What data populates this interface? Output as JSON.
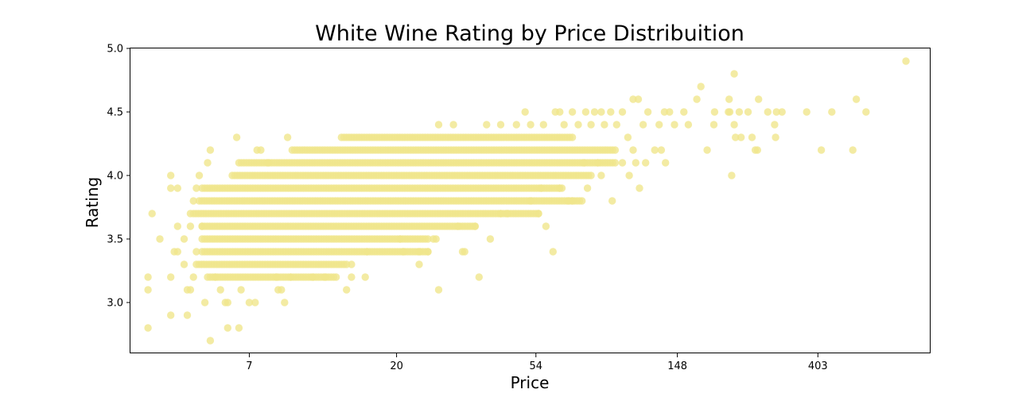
{
  "chart_data": {
    "type": "scatter",
    "title": "White Wine Rating by Price Distribuition",
    "xlabel": "Price",
    "ylabel": "Rating",
    "x_scale": "log",
    "xlim": [
      3,
      900
    ],
    "ylim": [
      2.6,
      5.0
    ],
    "x_ticks": [
      7,
      20,
      54,
      148,
      403
    ],
    "x_tick_labels": [
      "7",
      "20",
      "54",
      "148",
      "403"
    ],
    "y_ticks": [
      3.0,
      3.5,
      4.0,
      4.5,
      5.0
    ],
    "y_tick_labels": [
      "3.0",
      "3.5",
      "4.0",
      "4.5",
      "5.0"
    ],
    "grid": false,
    "legend": "none",
    "marker_color": "#f0e68c",
    "band_series": [
      {
        "rating": 4.3,
        "price_min": 13.5,
        "price_max": 70
      },
      {
        "rating": 4.2,
        "price_min": 9.5,
        "price_max": 95
      },
      {
        "rating": 4.1,
        "price_min": 6.5,
        "price_max": 95
      },
      {
        "rating": 4.0,
        "price_min": 6.2,
        "price_max": 80
      },
      {
        "rating": 3.9,
        "price_min": 5.0,
        "price_max": 65
      },
      {
        "rating": 3.8,
        "price_min": 4.9,
        "price_max": 75
      },
      {
        "rating": 3.7,
        "price_min": 4.7,
        "price_max": 55
      },
      {
        "rating": 3.6,
        "price_min": 5.0,
        "price_max": 35
      },
      {
        "rating": 3.5,
        "price_min": 5.0,
        "price_max": 25
      },
      {
        "rating": 3.4,
        "price_min": 5.0,
        "price_max": 25
      },
      {
        "rating": 3.3,
        "price_min": 4.8,
        "price_max": 14
      },
      {
        "rating": 3.2,
        "price_min": 5.2,
        "price_max": 13
      }
    ],
    "points": [
      {
        "x": 3.5,
        "y": 3.7
      },
      {
        "x": 3.4,
        "y": 3.2
      },
      {
        "x": 3.4,
        "y": 3.1
      },
      {
        "x": 3.4,
        "y": 2.8
      },
      {
        "x": 3.7,
        "y": 3.5
      },
      {
        "x": 4.0,
        "y": 4.0
      },
      {
        "x": 4.0,
        "y": 3.9
      },
      {
        "x": 4.2,
        "y": 3.9
      },
      {
        "x": 4.0,
        "y": 3.2
      },
      {
        "x": 4.0,
        "y": 2.9
      },
      {
        "x": 4.1,
        "y": 3.4
      },
      {
        "x": 4.2,
        "y": 3.4
      },
      {
        "x": 4.2,
        "y": 3.6
      },
      {
        "x": 4.4,
        "y": 3.5
      },
      {
        "x": 4.4,
        "y": 3.3
      },
      {
        "x": 4.5,
        "y": 3.1
      },
      {
        "x": 4.5,
        "y": 2.9
      },
      {
        "x": 4.6,
        "y": 3.6
      },
      {
        "x": 4.6,
        "y": 3.1
      },
      {
        "x": 4.7,
        "y": 3.2
      },
      {
        "x": 4.7,
        "y": 3.8
      },
      {
        "x": 4.6,
        "y": 3.7
      },
      {
        "x": 4.8,
        "y": 3.9
      },
      {
        "x": 4.9,
        "y": 4.0
      },
      {
        "x": 4.8,
        "y": 3.4
      },
      {
        "x": 5.0,
        "y": 3.6
      },
      {
        "x": 5.1,
        "y": 3.0
      },
      {
        "x": 5.2,
        "y": 4.1
      },
      {
        "x": 5.3,
        "y": 4.2
      },
      {
        "x": 5.3,
        "y": 2.7
      },
      {
        "x": 5.5,
        "y": 3.2
      },
      {
        "x": 5.7,
        "y": 3.1
      },
      {
        "x": 5.9,
        "y": 3.0
      },
      {
        "x": 6.0,
        "y": 3.0
      },
      {
        "x": 6.0,
        "y": 2.8
      },
      {
        "x": 6.5,
        "y": 2.8
      },
      {
        "x": 6.4,
        "y": 4.3
      },
      {
        "x": 6.6,
        "y": 3.1
      },
      {
        "x": 7.0,
        "y": 3.0
      },
      {
        "x": 7.3,
        "y": 3.0
      },
      {
        "x": 7.4,
        "y": 4.2
      },
      {
        "x": 7.6,
        "y": 4.2
      },
      {
        "x": 8.0,
        "y": 4.1
      },
      {
        "x": 8.5,
        "y": 3.2
      },
      {
        "x": 8.6,
        "y": 3.1
      },
      {
        "x": 8.8,
        "y": 3.1
      },
      {
        "x": 9.0,
        "y": 3.0
      },
      {
        "x": 9.2,
        "y": 4.3
      },
      {
        "x": 9.4,
        "y": 3.2
      },
      {
        "x": 11.0,
        "y": 3.2
      },
      {
        "x": 12.0,
        "y": 3.2
      },
      {
        "x": 14.0,
        "y": 3.1
      },
      {
        "x": 14.5,
        "y": 3.2
      },
      {
        "x": 14.5,
        "y": 3.3
      },
      {
        "x": 16.0,
        "y": 3.2
      },
      {
        "x": 16.2,
        "y": 3.4
      },
      {
        "x": 20.5,
        "y": 3.5
      },
      {
        "x": 21.0,
        "y": 3.4
      },
      {
        "x": 23.5,
        "y": 3.3
      },
      {
        "x": 23.5,
        "y": 3.4
      },
      {
        "x": 25.0,
        "y": 3.4
      },
      {
        "x": 26.0,
        "y": 3.5
      },
      {
        "x": 26.5,
        "y": 3.5
      },
      {
        "x": 27.0,
        "y": 3.1
      },
      {
        "x": 27.0,
        "y": 4.4
      },
      {
        "x": 31.0,
        "y": 3.6
      },
      {
        "x": 32.0,
        "y": 3.4
      },
      {
        "x": 32.5,
        "y": 3.4
      },
      {
        "x": 35.0,
        "y": 3.6
      },
      {
        "x": 36.0,
        "y": 3.2
      },
      {
        "x": 39.0,
        "y": 3.5
      },
      {
        "x": 30.0,
        "y": 4.4
      },
      {
        "x": 38.0,
        "y": 4.4
      },
      {
        "x": 42.0,
        "y": 4.4
      },
      {
        "x": 47.0,
        "y": 4.4
      },
      {
        "x": 50.0,
        "y": 4.5
      },
      {
        "x": 52.0,
        "y": 4.4
      },
      {
        "x": 57.0,
        "y": 4.4
      },
      {
        "x": 62.0,
        "y": 4.5
      },
      {
        "x": 64.0,
        "y": 4.5
      },
      {
        "x": 66.0,
        "y": 4.4
      },
      {
        "x": 70.0,
        "y": 4.5
      },
      {
        "x": 77.0,
        "y": 4.5
      },
      {
        "x": 82.0,
        "y": 4.5
      },
      {
        "x": 86.0,
        "y": 4.5
      },
      {
        "x": 92.0,
        "y": 4.5
      },
      {
        "x": 100.0,
        "y": 4.5
      },
      {
        "x": 108.0,
        "y": 4.6
      },
      {
        "x": 112.0,
        "y": 4.6
      },
      {
        "x": 120.0,
        "y": 4.5
      },
      {
        "x": 135.0,
        "y": 4.5
      },
      {
        "x": 140.0,
        "y": 4.5
      },
      {
        "x": 155.0,
        "y": 4.5
      },
      {
        "x": 73.0,
        "y": 4.4
      },
      {
        "x": 80.0,
        "y": 4.4
      },
      {
        "x": 88.0,
        "y": 4.4
      },
      {
        "x": 96.0,
        "y": 4.4
      },
      {
        "x": 104.0,
        "y": 4.3
      },
      {
        "x": 116.0,
        "y": 4.4
      },
      {
        "x": 130.0,
        "y": 4.4
      },
      {
        "x": 145.0,
        "y": 4.4
      },
      {
        "x": 160.0,
        "y": 4.4
      },
      {
        "x": 170.0,
        "y": 4.6
      },
      {
        "x": 175.0,
        "y": 4.7
      },
      {
        "x": 183.0,
        "y": 4.2
      },
      {
        "x": 193.0,
        "y": 4.5
      },
      {
        "x": 192.0,
        "y": 4.4
      },
      {
        "x": 108.0,
        "y": 4.2
      },
      {
        "x": 126.0,
        "y": 4.2
      },
      {
        "x": 132.0,
        "y": 4.2
      },
      {
        "x": 100.0,
        "y": 4.1
      },
      {
        "x": 110.0,
        "y": 4.1
      },
      {
        "x": 118.0,
        "y": 4.1
      },
      {
        "x": 136.0,
        "y": 4.1
      },
      {
        "x": 105.0,
        "y": 4.0
      },
      {
        "x": 113.0,
        "y": 3.9
      },
      {
        "x": 93.0,
        "y": 3.8
      },
      {
        "x": 58.0,
        "y": 3.6
      },
      {
        "x": 55.0,
        "y": 3.7
      },
      {
        "x": 61.0,
        "y": 3.4
      },
      {
        "x": 42.0,
        "y": 3.7
      },
      {
        "x": 44.0,
        "y": 3.7
      },
      {
        "x": 52.0,
        "y": 3.8
      },
      {
        "x": 56.0,
        "y": 3.9
      },
      {
        "x": 68.0,
        "y": 3.8
      },
      {
        "x": 70.0,
        "y": 3.8
      },
      {
        "x": 64.0,
        "y": 3.9
      },
      {
        "x": 78.0,
        "y": 3.9
      },
      {
        "x": 86.0,
        "y": 4.0
      },
      {
        "x": 84.0,
        "y": 4.1
      },
      {
        "x": 76.0,
        "y": 4.1
      },
      {
        "x": 213.0,
        "y": 4.5
      },
      {
        "x": 214.0,
        "y": 4.6
      },
      {
        "x": 215.0,
        "y": 4.5
      },
      {
        "x": 218.0,
        "y": 4.0
      },
      {
        "x": 222.0,
        "y": 4.8
      },
      {
        "x": 222.0,
        "y": 4.4
      },
      {
        "x": 224.0,
        "y": 4.3
      },
      {
        "x": 230.0,
        "y": 4.5
      },
      {
        "x": 233.0,
        "y": 4.3
      },
      {
        "x": 245.0,
        "y": 4.5
      },
      {
        "x": 252.0,
        "y": 4.3
      },
      {
        "x": 258.0,
        "y": 4.2
      },
      {
        "x": 262.0,
        "y": 4.2
      },
      {
        "x": 264.0,
        "y": 4.6
      },
      {
        "x": 282.0,
        "y": 4.5
      },
      {
        "x": 296.0,
        "y": 4.4
      },
      {
        "x": 298.0,
        "y": 4.3
      },
      {
        "x": 300.0,
        "y": 4.5
      },
      {
        "x": 312.0,
        "y": 4.5
      },
      {
        "x": 372.0,
        "y": 4.5
      },
      {
        "x": 413.0,
        "y": 4.2
      },
      {
        "x": 445.0,
        "y": 4.5
      },
      {
        "x": 517.0,
        "y": 4.2
      },
      {
        "x": 530.0,
        "y": 4.6
      },
      {
        "x": 568.0,
        "y": 4.5
      },
      {
        "x": 755.0,
        "y": 4.9
      }
    ]
  }
}
